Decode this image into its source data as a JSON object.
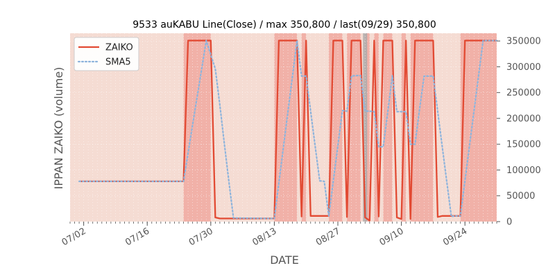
{
  "chart_data": {
    "type": "line",
    "title": "9533 auKABU Line(Close) / max 350,800 / last(09/29) 350,800",
    "xlabel": "DATE",
    "ylabel": "IPPAN ZAIKO (volume)",
    "ylim": [
      0,
      365000
    ],
    "xlim": [
      "2018-06-29",
      "2018-10-01"
    ],
    "grid": true,
    "legend_position": "top-left",
    "y_axis_side": "right",
    "yticks": [
      0,
      50000,
      100000,
      150000,
      200000,
      250000,
      300000,
      350000
    ],
    "ytick_labels": [
      "0",
      "50000",
      "100000",
      "150000",
      "200000",
      "250000",
      "300000",
      "350000"
    ],
    "xticks": [
      "2018-07-02",
      "2018-07-16",
      "2018-07-30",
      "2018-08-13",
      "2018-08-27",
      "2018-09-10",
      "2018-09-24"
    ],
    "xtick_labels": [
      "07/02",
      "07/16",
      "07/30",
      "08/13",
      "08/27",
      "09/10",
      "09/24"
    ],
    "series": [
      {
        "name": "ZAIKO",
        "color": "#e24a33",
        "style": "solid",
        "points": [
          [
            "2018-07-01",
            78000
          ],
          [
            "2018-07-24",
            78000
          ],
          [
            "2018-07-25",
            350800
          ],
          [
            "2018-07-30",
            350800
          ],
          [
            "2018-07-31",
            8000
          ],
          [
            "2018-08-01",
            6000
          ],
          [
            "2018-08-13",
            6000
          ],
          [
            "2018-08-14",
            350800
          ],
          [
            "2018-08-18",
            350800
          ],
          [
            "2018-08-19",
            10000
          ],
          [
            "2018-08-20",
            350800
          ],
          [
            "2018-08-21",
            11000
          ],
          [
            "2018-08-25",
            11000
          ],
          [
            "2018-08-26",
            350800
          ],
          [
            "2018-08-28",
            350800
          ],
          [
            "2018-08-29",
            9000
          ],
          [
            "2018-08-30",
            350800
          ],
          [
            "2018-09-01",
            350800
          ],
          [
            "2018-09-02",
            8000
          ],
          [
            "2018-09-03",
            2000
          ],
          [
            "2018-09-04",
            350800
          ],
          [
            "2018-09-05",
            10000
          ],
          [
            "2018-09-06",
            350800
          ],
          [
            "2018-09-08",
            350800
          ],
          [
            "2018-09-09",
            8000
          ],
          [
            "2018-09-10",
            5000
          ],
          [
            "2018-09-11",
            350800
          ],
          [
            "2018-09-12",
            5000
          ],
          [
            "2018-09-13",
            350800
          ],
          [
            "2018-09-17",
            350800
          ],
          [
            "2018-09-18",
            9000
          ],
          [
            "2018-09-19",
            11000
          ],
          [
            "2018-09-23",
            11000
          ],
          [
            "2018-09-24",
            350800
          ],
          [
            "2018-10-01",
            350800
          ]
        ]
      },
      {
        "name": "SMA5",
        "color": "#8eb4dc",
        "style": "dotted",
        "points": [
          [
            "2018-07-01",
            78000
          ],
          [
            "2018-07-24",
            78000
          ],
          [
            "2018-07-25",
            133000
          ],
          [
            "2018-07-26",
            188000
          ],
          [
            "2018-07-27",
            242000
          ],
          [
            "2018-07-28",
            296000
          ],
          [
            "2018-07-29",
            350800
          ],
          [
            "2018-07-31",
            296000
          ],
          [
            "2018-08-01",
            226000
          ],
          [
            "2018-08-02",
            150000
          ],
          [
            "2018-08-03",
            77000
          ],
          [
            "2018-08-04",
            7000
          ],
          [
            "2018-08-13",
            6000
          ],
          [
            "2018-08-14",
            75000
          ],
          [
            "2018-08-15",
            144000
          ],
          [
            "2018-08-16",
            213000
          ],
          [
            "2018-08-17",
            282000
          ],
          [
            "2018-08-18",
            350800
          ],
          [
            "2018-08-19",
            282000
          ],
          [
            "2018-08-20",
            282000
          ],
          [
            "2018-08-21",
            214000
          ],
          [
            "2018-08-22",
            146000
          ],
          [
            "2018-08-23",
            79000
          ],
          [
            "2018-08-24",
            78000
          ],
          [
            "2018-08-25",
            11000
          ],
          [
            "2018-08-26",
            79000
          ],
          [
            "2018-08-27",
            147000
          ],
          [
            "2018-08-28",
            215000
          ],
          [
            "2018-08-29",
            214000
          ],
          [
            "2018-08-30",
            282000
          ],
          [
            "2018-08-31",
            283000
          ],
          [
            "2018-09-01",
            283000
          ],
          [
            "2018-09-02",
            214000
          ],
          [
            "2018-09-03",
            214000
          ],
          [
            "2018-09-04",
            213000
          ],
          [
            "2018-09-05",
            145000
          ],
          [
            "2018-09-06",
            145000
          ],
          [
            "2018-09-07",
            213000
          ],
          [
            "2018-09-08",
            283000
          ],
          [
            "2018-09-09",
            213000
          ],
          [
            "2018-09-10",
            213000
          ],
          [
            "2018-09-11",
            213000
          ],
          [
            "2018-09-12",
            150000
          ],
          [
            "2018-09-13",
            150000
          ],
          [
            "2018-09-14",
            218000
          ],
          [
            "2018-09-15",
            282000
          ],
          [
            "2018-09-16",
            282000
          ],
          [
            "2018-09-17",
            282000
          ],
          [
            "2018-09-18",
            213000
          ],
          [
            "2018-09-19",
            145000
          ],
          [
            "2018-09-20",
            77000
          ],
          [
            "2018-09-21",
            10000
          ],
          [
            "2018-09-22",
            11000
          ],
          [
            "2018-09-23",
            11000
          ],
          [
            "2018-09-24",
            79000
          ],
          [
            "2018-09-25",
            147000
          ],
          [
            "2018-09-26",
            215000
          ],
          [
            "2018-09-27",
            283000
          ],
          [
            "2018-09-28",
            350800
          ],
          [
            "2018-10-01",
            350800
          ]
        ]
      }
    ],
    "shaded_spans": [
      {
        "start": "2018-07-24",
        "end": "2018-07-30",
        "level": "dark"
      },
      {
        "start": "2018-08-13",
        "end": "2018-08-18",
        "level": "dark"
      },
      {
        "start": "2018-08-19",
        "end": "2018-08-20",
        "level": "dark"
      },
      {
        "start": "2018-08-25",
        "end": "2018-08-28",
        "level": "dark"
      },
      {
        "start": "2018-08-29",
        "end": "2018-09-01",
        "level": "dark"
      },
      {
        "start": "2018-09-02",
        "end": "2018-09-03",
        "level": "dark"
      },
      {
        "start": "2018-09-04",
        "end": "2018-09-05",
        "level": "dark"
      },
      {
        "start": "2018-09-06",
        "end": "2018-09-08",
        "level": "dark"
      },
      {
        "start": "2018-09-10",
        "end": "2018-09-11",
        "level": "dark"
      },
      {
        "start": "2018-09-12",
        "end": "2018-09-17",
        "level": "dark"
      },
      {
        "start": "2018-09-23",
        "end": "2018-10-01",
        "level": "dark"
      }
    ],
    "marker_date": "2018-09-02",
    "colors": {
      "plot_background": "#f5dcd3",
      "span_dark": "#f0a9a0",
      "marker": "#aaaaaa",
      "tick_text": "#555555",
      "axis_label": "#555555"
    }
  }
}
